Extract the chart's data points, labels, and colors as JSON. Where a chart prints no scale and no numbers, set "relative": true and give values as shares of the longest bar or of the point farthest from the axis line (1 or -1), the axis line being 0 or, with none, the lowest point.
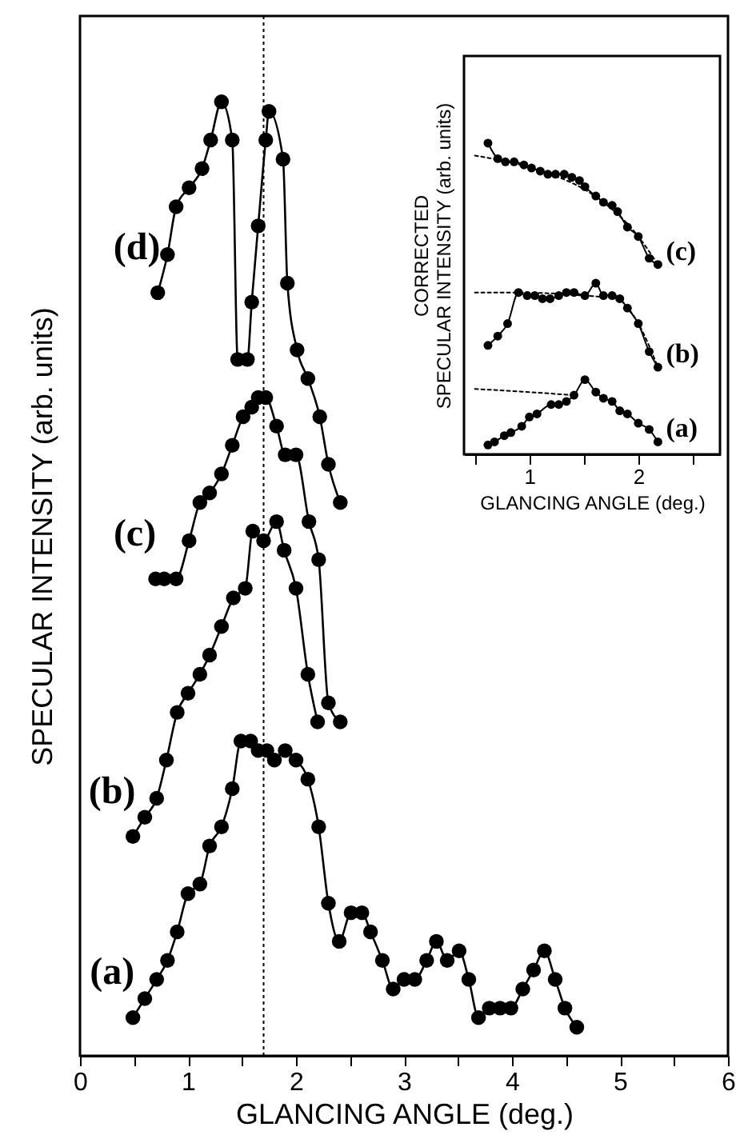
{
  "chart_data": [
    {
      "type": "line",
      "xlabel": "GLANCING ANGLE (deg.)",
      "ylabel": "SPECULAR INTENSITY (arb. units)",
      "relative": true,
      "xlim": [
        0,
        6
      ],
      "xticks": [
        0,
        {
          "value": 0.5,
          "label": null
        },
        1,
        {
          "value": 1.5,
          "label": null
        },
        2,
        {
          "value": 2.5,
          "label": null
        },
        3,
        {
          "value": 3.5,
          "label": null
        },
        4,
        {
          "value": 4.5,
          "label": null
        },
        5,
        {
          "value": 5.5,
          "label": null
        },
        6
      ],
      "grid": false,
      "marker": "circle",
      "ref_lines": [
        {
          "axis": "x",
          "value": 1.7,
          "line_style": "dotted",
          "color": "#000000"
        }
      ],
      "series": [
        {
          "name": "(a)",
          "color": "#000000",
          "x": [
            0.49,
            0.6,
            0.71,
            0.81,
            0.9,
            1.0,
            1.11,
            1.2,
            1.31,
            1.41,
            1.49,
            1.58,
            1.65,
            1.73,
            1.8,
            1.9,
            2.0,
            2.11,
            2.21,
            2.3,
            2.4,
            2.51,
            2.61,
            2.69,
            2.8,
            2.9,
            3.0,
            3.1,
            3.21,
            3.3,
            3.4,
            3.51,
            3.6,
            3.69,
            3.79,
            3.89,
            3.99,
            4.1,
            4.2,
            4.3,
            4.4,
            4.49,
            4.6
          ],
          "values": [
            0.04,
            0.06,
            0.08,
            0.1,
            0.13,
            0.17,
            0.18,
            0.22,
            0.24,
            0.28,
            0.33,
            0.33,
            0.32,
            0.32,
            0.31,
            0.32,
            0.31,
            0.29,
            0.24,
            0.16,
            0.12,
            0.15,
            0.15,
            0.13,
            0.1,
            0.07,
            0.08,
            0.08,
            0.1,
            0.12,
            0.1,
            0.11,
            0.08,
            0.04,
            0.05,
            0.05,
            0.05,
            0.07,
            0.09,
            0.11,
            0.08,
            0.05,
            0.03
          ]
        },
        {
          "name": "(b)",
          "color": "#000000",
          "x": [
            0.49,
            0.6,
            0.71,
            0.8,
            0.9,
            1.0,
            1.11,
            1.2,
            1.31,
            1.42,
            1.53,
            1.6,
            1.7,
            1.82,
            1.89,
            2.0,
            2.11,
            2.2
          ],
          "values": [
            0.23,
            0.25,
            0.27,
            0.31,
            0.36,
            0.38,
            0.4,
            0.42,
            0.45,
            0.48,
            0.49,
            0.55,
            0.54,
            0.56,
            0.53,
            0.49,
            0.4,
            0.35
          ]
        },
        {
          "name": "(c)",
          "color": "#000000",
          "x": [
            0.7,
            0.78,
            0.89,
            1.01,
            1.11,
            1.2,
            1.31,
            1.41,
            1.51,
            1.59,
            1.65,
            1.72,
            1.82,
            1.9,
            2.0,
            2.12,
            2.21,
            2.3,
            2.41
          ],
          "values": [
            0.5,
            0.5,
            0.5,
            0.54,
            0.58,
            0.59,
            0.61,
            0.64,
            0.67,
            0.68,
            0.69,
            0.69,
            0.66,
            0.63,
            0.63,
            0.56,
            0.52,
            0.37,
            0.35
          ]
        },
        {
          "name": "(d)",
          "color": "#000000",
          "x": [
            0.72,
            0.81,
            0.89,
            1.01,
            1.13,
            1.21,
            1.31,
            1.41,
            1.46,
            1.55,
            1.59,
            1.65,
            1.72,
            1.75,
            1.88,
            1.92,
            2.01,
            2.11,
            2.22,
            2.3,
            2.41
          ],
          "values": [
            0.8,
            0.84,
            0.89,
            0.91,
            0.93,
            0.96,
            1.0,
            0.96,
            0.73,
            0.73,
            0.79,
            0.87,
            0.96,
            0.99,
            0.94,
            0.81,
            0.74,
            0.71,
            0.67,
            0.62,
            0.58
          ]
        }
      ]
    },
    {
      "type": "line",
      "xlabel": "GLANCING ANGLE (deg.)",
      "ylabel": "CORRECTED\nSPECULAR INTENSITY (arb. units)",
      "relative": true,
      "xlim": [
        0.4,
        2.75
      ],
      "xticks": [
        {
          "value": 0.5,
          "label": null
        },
        1,
        {
          "value": 1.5,
          "label": null
        },
        2,
        {
          "value": 2.5,
          "label": null
        }
      ],
      "grid": false,
      "marker": "circle",
      "series": [
        {
          "name": "(a)",
          "color": "#000000",
          "x": [
            0.62,
            0.68,
            0.77,
            0.83,
            0.93,
            1.0,
            1.07,
            1.2,
            1.27,
            1.34,
            1.41,
            1.51,
            1.61,
            1.68,
            1.76,
            1.83,
            1.9,
            2.0,
            2.1,
            2.18
          ],
          "values": [
            0.03,
            0.04,
            0.06,
            0.07,
            0.09,
            0.12,
            0.13,
            0.16,
            0.16,
            0.17,
            0.19,
            0.24,
            0.2,
            0.18,
            0.17,
            0.14,
            0.13,
            0.1,
            0.08,
            0.04
          ]
        },
        {
          "name": "(b)",
          "color": "#000000",
          "x": [
            0.62,
            0.71,
            0.8,
            0.9,
            0.98,
            1.05,
            1.12,
            1.19,
            1.27,
            1.34,
            1.41,
            1.51,
            1.61,
            1.68,
            1.76,
            1.83,
            1.9,
            2.0,
            2.1,
            2.18
          ],
          "values": [
            0.35,
            0.38,
            0.42,
            0.52,
            0.51,
            0.51,
            0.5,
            0.5,
            0.51,
            0.52,
            0.52,
            0.51,
            0.55,
            0.51,
            0.51,
            0.5,
            0.47,
            0.42,
            0.33,
            0.28
          ]
        },
        {
          "name": "(c)",
          "color": "#000000",
          "x": [
            0.62,
            0.71,
            0.78,
            0.86,
            0.95,
            1.02,
            1.1,
            1.17,
            1.24,
            1.32,
            1.39,
            1.46,
            1.51,
            1.61,
            1.68,
            1.76,
            1.81,
            1.9,
            2.0,
            2.1,
            2.18
          ],
          "values": [
            1.0,
            0.95,
            0.94,
            0.94,
            0.93,
            0.92,
            0.91,
            0.9,
            0.9,
            0.9,
            0.89,
            0.88,
            0.86,
            0.83,
            0.81,
            0.8,
            0.78,
            0.73,
            0.7,
            0.63,
            0.61
          ]
        },
        {
          "color": "#000000",
          "marker": "none",
          "line_style": "dotted",
          "x": [
            0.5,
            1.0,
            1.4
          ],
          "values": [
            0.21,
            0.2,
            0.19
          ]
        },
        {
          "color": "#000000",
          "marker": "none",
          "line_style": "dotted",
          "x": [
            0.5,
            0.9,
            1.5,
            1.8,
            2.0,
            2.18
          ],
          "values": [
            0.52,
            0.52,
            0.51,
            0.5,
            0.42,
            0.28
          ]
        },
        {
          "color": "#000000",
          "marker": "none",
          "line_style": "dotted",
          "x": [
            0.5,
            0.8,
            1.2,
            1.6,
            2.0,
            2.18
          ],
          "values": [
            0.96,
            0.94,
            0.9,
            0.83,
            0.7,
            0.61
          ]
        }
      ]
    }
  ]
}
